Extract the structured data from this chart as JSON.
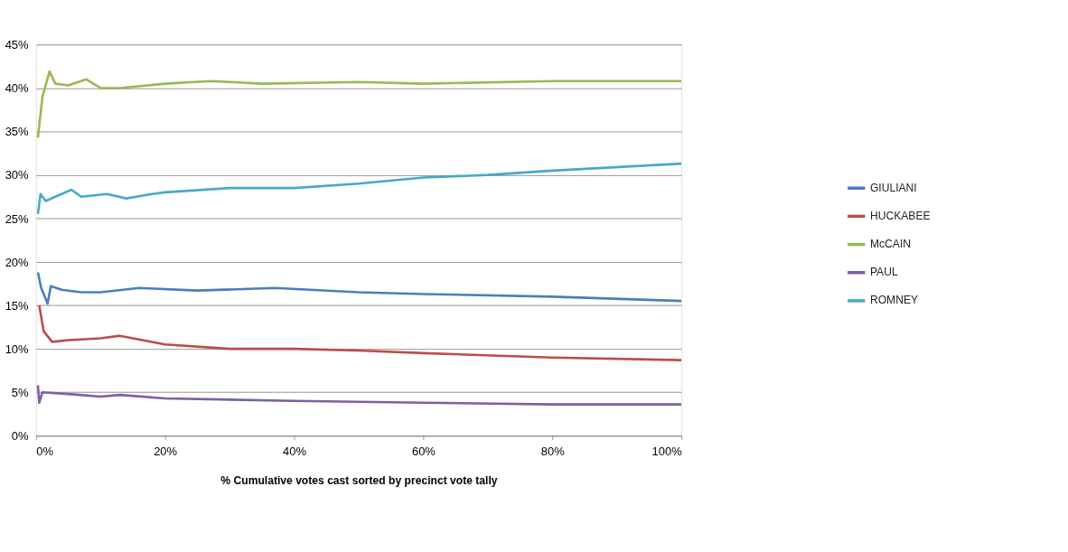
{
  "chart_data": {
    "type": "line",
    "xlabel": "% Cumulative votes cast sorted by precinct vote tally",
    "xlim": [
      0,
      100
    ],
    "xticks": [
      {
        "value": 0,
        "label": "0%"
      },
      {
        "value": 20,
        "label": "20%"
      },
      {
        "value": 40,
        "label": "40%"
      },
      {
        "value": 60,
        "label": "60%"
      },
      {
        "value": 80,
        "label": "80%"
      },
      {
        "value": 100,
        "label": "100%"
      }
    ],
    "ylim": [
      0,
      45
    ],
    "yticks": [
      {
        "value": 0,
        "label": "0%"
      },
      {
        "value": 5,
        "label": "5%"
      },
      {
        "value": 10,
        "label": "10%"
      },
      {
        "value": 15,
        "label": "15%"
      },
      {
        "value": 20,
        "label": "20%"
      },
      {
        "value": 25,
        "label": "25%"
      },
      {
        "value": 30,
        "label": "30%"
      },
      {
        "value": 35,
        "label": "35%"
      },
      {
        "value": 40,
        "label": "40%"
      },
      {
        "value": 45,
        "label": "45%"
      }
    ],
    "grid": "y",
    "legend": "right",
    "marker": "none",
    "line_style": "solid",
    "series": [
      {
        "name": "GIULIANI",
        "color": "#4a7ebb",
        "x": [
          0.3,
          0.8,
          1.8,
          2.3,
          4,
          7,
          10,
          16,
          25,
          37,
          50,
          60,
          80,
          100
        ],
        "values": [
          18.8,
          17,
          15.2,
          17.2,
          16.8,
          16.5,
          16.5,
          17,
          16.7,
          17,
          16.5,
          16.3,
          16,
          15.5
        ]
      },
      {
        "name": "HUCKABEE",
        "color": "#be4b48",
        "x": [
          0.5,
          1.2,
          2.5,
          5,
          10,
          13,
          20,
          30,
          40,
          50,
          60,
          80,
          100
        ],
        "values": [
          15,
          12,
          10.8,
          11,
          11.2,
          11.5,
          10.5,
          10,
          10,
          9.8,
          9.5,
          9,
          8.7
        ]
      },
      {
        "name": "McCAIN",
        "color": "#98b954",
        "x": [
          0.3,
          1,
          2.1,
          3,
          5,
          7.8,
          10,
          13,
          20,
          27,
          35,
          50,
          60,
          80,
          100
        ],
        "values": [
          34.3,
          39,
          41.9,
          40.5,
          40.3,
          41,
          40,
          40,
          40.5,
          40.8,
          40.5,
          40.7,
          40.5,
          40.8,
          40.8
        ]
      },
      {
        "name": "PAUL",
        "color": "#7d60a0",
        "x": [
          0.3,
          0.5,
          1,
          5,
          10,
          13,
          20,
          40,
          60,
          80,
          100
        ],
        "values": [
          5.8,
          3.8,
          5,
          4.8,
          4.5,
          4.7,
          4.3,
          4,
          3.8,
          3.6,
          3.6
        ]
      },
      {
        "name": "ROMNEY",
        "color": "#46aac5",
        "x": [
          0.3,
          0.7,
          1.5,
          3,
          5.5,
          7,
          11,
          14,
          18,
          20,
          30,
          40,
          50,
          60,
          70,
          80,
          100
        ],
        "values": [
          25.5,
          27.8,
          27,
          27.5,
          28.3,
          27.5,
          27.8,
          27.3,
          27.8,
          28,
          28.5,
          28.5,
          29,
          29.7,
          30,
          30.5,
          31.3
        ]
      }
    ]
  }
}
